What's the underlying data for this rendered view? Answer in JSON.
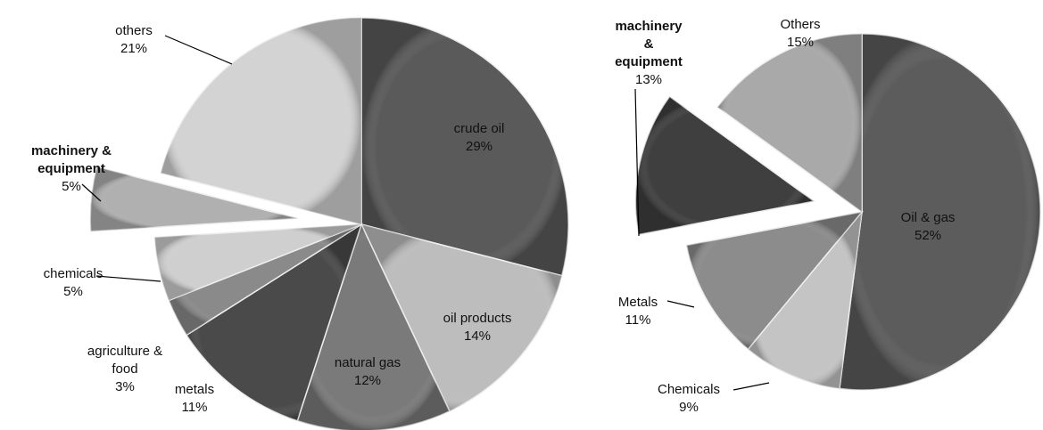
{
  "chart_data": [
    {
      "type": "pie",
      "categories": [
        "crude oil",
        "oil products",
        "natural gas",
        "metals",
        "agriculture & food",
        "chemicals",
        "machinery & equipment",
        "others"
      ],
      "values": [
        29,
        14,
        12,
        11,
        3,
        5,
        5,
        21
      ],
      "value_labels": [
        "29%",
        "14%",
        "12%",
        "11%",
        "3%",
        "5%",
        "5%",
        "21%"
      ],
      "colors": [
        "#5a5a5a",
        "#bdbdbd",
        "#7a7a7a",
        "#4a4a4a",
        "#8a8a8a",
        "#cfcfcf",
        "#b0b0b0",
        "#d3d3d3"
      ]
    },
    {
      "type": "pie",
      "categories": [
        "Oil & gas",
        "Chemicals",
        "Metals",
        "machinery & equipment",
        "Others"
      ],
      "values": [
        52,
        9,
        11,
        13,
        15
      ],
      "value_labels": [
        "52%",
        "9%",
        "11%",
        "13%",
        "15%"
      ],
      "colors": [
        "#5c5c5c",
        "#c4c4c4",
        "#8c8c8c",
        "#3f3f3f",
        "#a9a9a9"
      ]
    }
  ]
}
